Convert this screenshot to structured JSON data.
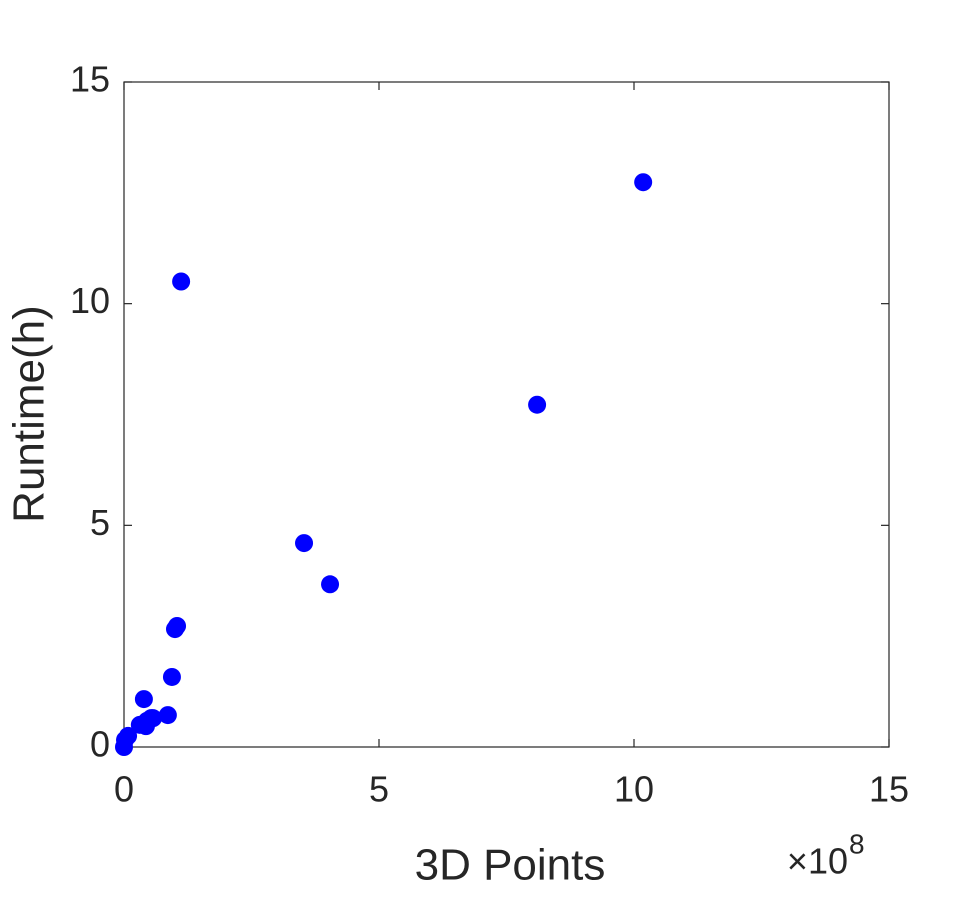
{
  "chart_data": {
    "type": "scatter",
    "xlabel": "3D Points",
    "ylabel": "Runtime(h)",
    "x_multiplier": "×10",
    "x_exponent": "8",
    "color": "#0000ff",
    "x": [
      0,
      0.02,
      0.08,
      0.31,
      0.39,
      0.43,
      0.45,
      0.53,
      0.57,
      0.86,
      0.94,
      1.0,
      1.04,
      1.12,
      3.53,
      4.04,
      8.1,
      10.18
    ],
    "y": [
      0,
      0.16,
      0.25,
      0.5,
      1.08,
      0.47,
      0.59,
      0.65,
      0.65,
      0.72,
      1.58,
      2.66,
      2.73,
      10.5,
      4.6,
      3.67,
      7.72,
      12.74
    ],
    "xlim": [
      0,
      15
    ],
    "xticks": [
      0,
      5,
      10,
      15
    ],
    "ylim": [
      0,
      15
    ],
    "yticks": [
      0,
      5,
      10,
      15
    ],
    "box": true
  }
}
